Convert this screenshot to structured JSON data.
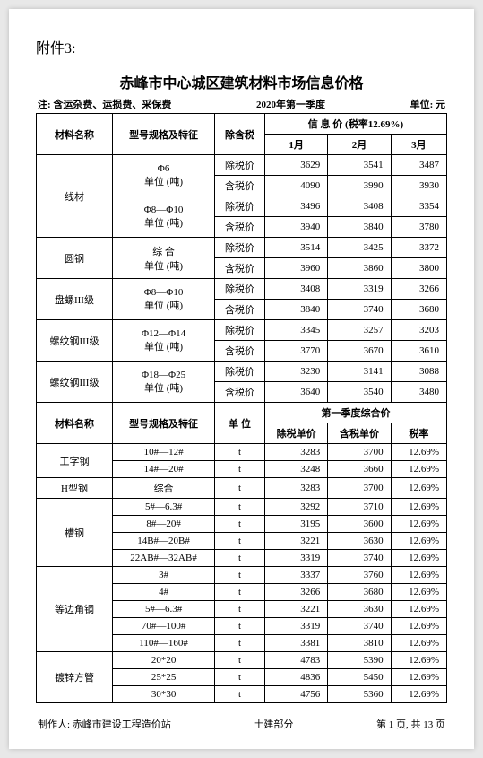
{
  "attachment_label": "附件3:",
  "title": "赤峰市中心城区建筑材料市场信息价格",
  "note": "注: 含运杂费、运损费、采保费",
  "period": "2020年第一季度",
  "unit_label": "单位: 元",
  "headers_top": {
    "material": "材料名称",
    "spec": "型号规格及特征",
    "excl_tax": "除含税",
    "info_price": "信 息 价 (税率12.69%)",
    "m1": "1月",
    "m2": "2月",
    "m3": "3月"
  },
  "section1": [
    {
      "name": "线材",
      "spec1": "Φ6",
      "spec2": "单位 (吨)",
      "rows": [
        {
          "k": "除税价",
          "v": [
            3629,
            3541,
            3487
          ]
        },
        {
          "k": "含税价",
          "v": [
            4090,
            3990,
            3930
          ]
        }
      ]
    },
    {
      "name": "",
      "spec1": "Φ8—Φ10",
      "spec2": "单位 (吨)",
      "rows": [
        {
          "k": "除税价",
          "v": [
            3496,
            3408,
            3354
          ]
        },
        {
          "k": "含税价",
          "v": [
            3940,
            3840,
            3780
          ]
        }
      ]
    },
    {
      "name": "圆钢",
      "spec1": "综 合",
      "spec2": "单位 (吨)",
      "rows": [
        {
          "k": "除税价",
          "v": [
            3514,
            3425,
            3372
          ]
        },
        {
          "k": "含税价",
          "v": [
            3960,
            3860,
            3800
          ]
        }
      ]
    },
    {
      "name": "盘螺III级",
      "spec1": "Φ8—Φ10",
      "spec2": "单位 (吨)",
      "rows": [
        {
          "k": "除税价",
          "v": [
            3408,
            3319,
            3266
          ]
        },
        {
          "k": "含税价",
          "v": [
            3840,
            3740,
            3680
          ]
        }
      ]
    },
    {
      "name": "螺纹钢III级",
      "spec1": "Φ12—Φ14",
      "spec2": "单位 (吨)",
      "rows": [
        {
          "k": "除税价",
          "v": [
            3345,
            3257,
            3203
          ]
        },
        {
          "k": "含税价",
          "v": [
            3770,
            3670,
            3610
          ]
        }
      ]
    },
    {
      "name": "螺纹钢III级",
      "spec1": "Φ18—Φ25",
      "spec2": "单位 (吨)",
      "rows": [
        {
          "k": "除税价",
          "v": [
            3230,
            3141,
            3088
          ]
        },
        {
          "k": "含税价",
          "v": [
            3640,
            3540,
            3480
          ]
        }
      ]
    }
  ],
  "headers_mid": {
    "material": "材料名称",
    "spec": "型号规格及特征",
    "unit": "单 位",
    "q_price": "第一季度综合价",
    "excl": "除税单价",
    "incl": "含税单价",
    "rate": "税率"
  },
  "section2": [
    {
      "name": "工字钢",
      "span": 2,
      "items": [
        {
          "s": "10#—12#",
          "u": "t",
          "v": [
            3283,
            3700,
            "12.69%"
          ]
        },
        {
          "s": "14#—20#",
          "u": "t",
          "v": [
            3248,
            3660,
            "12.69%"
          ]
        }
      ]
    },
    {
      "name": "H型钢",
      "span": 1,
      "items": [
        {
          "s": "综合",
          "u": "t",
          "v": [
            3283,
            3700,
            "12.69%"
          ]
        }
      ]
    },
    {
      "name": "槽钢",
      "span": 4,
      "items": [
        {
          "s": "5#—6.3#",
          "u": "t",
          "v": [
            3292,
            3710,
            "12.69%"
          ]
        },
        {
          "s": "8#—20#",
          "u": "t",
          "v": [
            3195,
            3600,
            "12.69%"
          ]
        },
        {
          "s": "14B#—20B#",
          "u": "t",
          "v": [
            3221,
            3630,
            "12.69%"
          ]
        },
        {
          "s": "22AB#—32AB#",
          "u": "t",
          "v": [
            3319,
            3740,
            "12.69%"
          ]
        }
      ]
    },
    {
      "name": "等边角钢",
      "span": 5,
      "items": [
        {
          "s": "3#",
          "u": "t",
          "v": [
            3337,
            3760,
            "12.69%"
          ]
        },
        {
          "s": "4#",
          "u": "t",
          "v": [
            3266,
            3680,
            "12.69%"
          ]
        },
        {
          "s": "5#—6.3#",
          "u": "t",
          "v": [
            3221,
            3630,
            "12.69%"
          ]
        },
        {
          "s": "70#—100#",
          "u": "t",
          "v": [
            3319,
            3740,
            "12.69%"
          ]
        },
        {
          "s": "110#—160#",
          "u": "t",
          "v": [
            3381,
            3810,
            "12.69%"
          ]
        }
      ]
    },
    {
      "name": "镀锌方管",
      "span": 3,
      "items": [
        {
          "s": "20*20",
          "u": "t",
          "v": [
            4783,
            5390,
            "12.69%"
          ]
        },
        {
          "s": "25*25",
          "u": "t",
          "v": [
            4836,
            5450,
            "12.69%"
          ]
        },
        {
          "s": "30*30",
          "u": "t",
          "v": [
            4756,
            5360,
            "12.69%"
          ]
        }
      ]
    }
  ],
  "footer": {
    "author": "制作人: 赤峰市建设工程造价站",
    "part": "土建部分",
    "page": "第 1 页, 共 13 页"
  }
}
